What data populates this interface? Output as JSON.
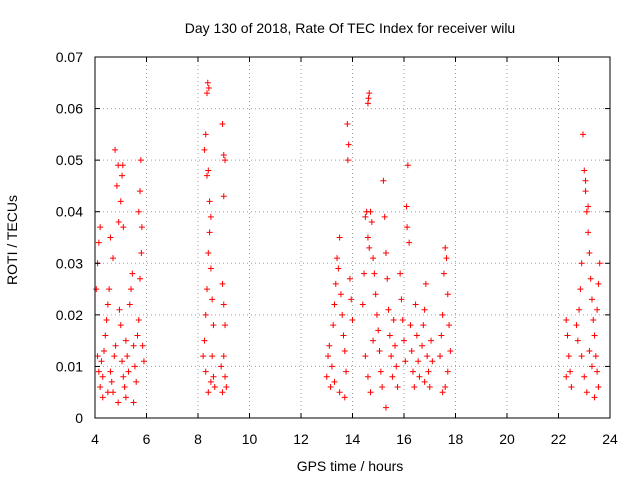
{
  "chart_data": {
    "type": "scatter",
    "title": "Day 130 of 2018, Rate Of TEC Index for receiver wilu",
    "xlabel": "GPS time / hours",
    "ylabel": "ROTI / TECUs",
    "xlim": [
      4,
      24
    ],
    "ylim": [
      0,
      0.07
    ],
    "xticks": [
      4,
      6,
      8,
      10,
      12,
      14,
      16,
      18,
      20,
      22,
      24
    ],
    "xtick_labels": [
      "4",
      "6",
      "8",
      "10",
      "12",
      "14",
      "16",
      "18",
      "20",
      "22",
      "24"
    ],
    "yticks": [
      0,
      0.01,
      0.02,
      0.03,
      0.04,
      0.05,
      0.06,
      0.07
    ],
    "ytick_labels": [
      "0",
      "0.01",
      "0.02",
      "0.03",
      "0.04",
      "0.05",
      "0.06",
      "0.07"
    ],
    "grid": true,
    "marker": "+",
    "color": "#ff0000",
    "series": [
      {
        "name": "ROTI",
        "points": [
          [
            4.05,
            0.025
          ],
          [
            4.1,
            0.03
          ],
          [
            4.15,
            0.034
          ],
          [
            4.2,
            0.037
          ],
          [
            4.1,
            0.012
          ],
          [
            4.15,
            0.009
          ],
          [
            4.2,
            0.006
          ],
          [
            4.25,
            0.011
          ],
          [
            4.3,
            0.008
          ],
          [
            4.35,
            0.013
          ],
          [
            4.4,
            0.016
          ],
          [
            4.45,
            0.019
          ],
          [
            4.5,
            0.022
          ],
          [
            4.55,
            0.025
          ],
          [
            4.6,
            0.009
          ],
          [
            4.65,
            0.007
          ],
          [
            4.7,
            0.005
          ],
          [
            4.75,
            0.012
          ],
          [
            4.8,
            0.014
          ],
          [
            4.85,
            0.045
          ],
          [
            4.9,
            0.049
          ],
          [
            4.78,
            0.052
          ],
          [
            4.92,
            0.038
          ],
          [
            4.7,
            0.031
          ],
          [
            4.6,
            0.035
          ],
          [
            4.95,
            0.021
          ],
          [
            5.0,
            0.018
          ],
          [
            5.05,
            0.011
          ],
          [
            5.1,
            0.008
          ],
          [
            5.15,
            0.006
          ],
          [
            5.0,
            0.042
          ],
          [
            5.05,
            0.047
          ],
          [
            5.08,
            0.049
          ],
          [
            5.1,
            0.037
          ],
          [
            5.2,
            0.015
          ],
          [
            5.25,
            0.012
          ],
          [
            5.3,
            0.009
          ],
          [
            5.35,
            0.022
          ],
          [
            5.4,
            0.025
          ],
          [
            5.45,
            0.028
          ],
          [
            5.5,
            0.014
          ],
          [
            5.55,
            0.01
          ],
          [
            5.6,
            0.007
          ],
          [
            5.65,
            0.016
          ],
          [
            5.7,
            0.019
          ],
          [
            5.75,
            0.027
          ],
          [
            5.8,
            0.032
          ],
          [
            5.7,
            0.04
          ],
          [
            5.75,
            0.044
          ],
          [
            5.78,
            0.05
          ],
          [
            5.82,
            0.037
          ],
          [
            5.85,
            0.014
          ],
          [
            5.9,
            0.011
          ],
          [
            4.3,
            0.004
          ],
          [
            4.5,
            0.005
          ],
          [
            4.9,
            0.003
          ],
          [
            5.2,
            0.004
          ],
          [
            5.5,
            0.003
          ],
          [
            8.2,
            0.012
          ],
          [
            8.25,
            0.015
          ],
          [
            8.3,
            0.02
          ],
          [
            8.35,
            0.025
          ],
          [
            8.4,
            0.032
          ],
          [
            8.3,
            0.055
          ],
          [
            8.35,
            0.063
          ],
          [
            8.38,
            0.065
          ],
          [
            8.42,
            0.064
          ],
          [
            8.4,
            0.048
          ],
          [
            8.45,
            0.042
          ],
          [
            8.5,
            0.039
          ],
          [
            8.45,
            0.036
          ],
          [
            8.5,
            0.029
          ],
          [
            8.55,
            0.023
          ],
          [
            8.6,
            0.018
          ],
          [
            8.55,
            0.012
          ],
          [
            8.6,
            0.008
          ],
          [
            8.65,
            0.006
          ],
          [
            8.3,
            0.009
          ],
          [
            8.4,
            0.005
          ],
          [
            8.5,
            0.007
          ],
          [
            8.25,
            0.052
          ],
          [
            8.35,
            0.047
          ],
          [
            8.95,
            0.057
          ],
          [
            9.0,
            0.051
          ],
          [
            9.05,
            0.05
          ],
          [
            9.0,
            0.043
          ],
          [
            8.95,
            0.026
          ],
          [
            9.0,
            0.022
          ],
          [
            9.05,
            0.018
          ],
          [
            9.0,
            0.012
          ],
          [
            9.05,
            0.008
          ],
          [
            8.95,
            0.005
          ],
          [
            8.9,
            0.01
          ],
          [
            9.1,
            0.006
          ],
          [
            13.0,
            0.008
          ],
          [
            13.05,
            0.012
          ],
          [
            13.1,
            0.014
          ],
          [
            13.15,
            0.006
          ],
          [
            13.2,
            0.01
          ],
          [
            13.25,
            0.018
          ],
          [
            13.3,
            0.022
          ],
          [
            13.35,
            0.026
          ],
          [
            13.4,
            0.031
          ],
          [
            13.45,
            0.029
          ],
          [
            13.5,
            0.035
          ],
          [
            13.55,
            0.024
          ],
          [
            13.6,
            0.02
          ],
          [
            13.65,
            0.016
          ],
          [
            13.7,
            0.013
          ],
          [
            13.75,
            0.009
          ],
          [
            13.8,
            0.057
          ],
          [
            13.85,
            0.053
          ],
          [
            13.82,
            0.05
          ],
          [
            13.9,
            0.027
          ],
          [
            13.95,
            0.023
          ],
          [
            14.0,
            0.019
          ],
          [
            13.3,
            0.007
          ],
          [
            13.5,
            0.005
          ],
          [
            13.7,
            0.004
          ],
          [
            14.4,
            0.022
          ],
          [
            14.45,
            0.028
          ],
          [
            14.5,
            0.039
          ],
          [
            14.55,
            0.04
          ],
          [
            14.6,
            0.035
          ],
          [
            14.65,
            0.033
          ],
          [
            14.6,
            0.061
          ],
          [
            14.65,
            0.063
          ],
          [
            14.62,
            0.062
          ],
          [
            14.7,
            0.04
          ],
          [
            14.75,
            0.038
          ],
          [
            14.8,
            0.031
          ],
          [
            14.85,
            0.028
          ],
          [
            14.9,
            0.024
          ],
          [
            14.95,
            0.02
          ],
          [
            15.0,
            0.017
          ],
          [
            15.05,
            0.013
          ],
          [
            15.1,
            0.009
          ],
          [
            15.15,
            0.006
          ],
          [
            14.5,
            0.012
          ],
          [
            14.6,
            0.008
          ],
          [
            14.7,
            0.005
          ],
          [
            14.8,
            0.015
          ],
          [
            15.2,
            0.046
          ],
          [
            15.25,
            0.039
          ],
          [
            15.3,
            0.032
          ],
          [
            15.35,
            0.027
          ],
          [
            15.4,
            0.021
          ],
          [
            15.45,
            0.016
          ],
          [
            15.5,
            0.012
          ],
          [
            15.55,
            0.008
          ],
          [
            15.3,
            0.002
          ],
          [
            15.6,
            0.019
          ],
          [
            15.65,
            0.014
          ],
          [
            15.7,
            0.01
          ],
          [
            15.75,
            0.006
          ],
          [
            15.85,
            0.028
          ],
          [
            15.9,
            0.023
          ],
          [
            15.95,
            0.019
          ],
          [
            16.0,
            0.015
          ],
          [
            16.05,
            0.011
          ],
          [
            16.1,
            0.041
          ],
          [
            16.15,
            0.049
          ],
          [
            16.12,
            0.037
          ],
          [
            16.2,
            0.034
          ],
          [
            16.25,
            0.018
          ],
          [
            16.3,
            0.013
          ],
          [
            16.35,
            0.009
          ],
          [
            16.4,
            0.006
          ],
          [
            16.45,
            0.022
          ],
          [
            16.5,
            0.016
          ],
          [
            16.55,
            0.011
          ],
          [
            16.6,
            0.008
          ],
          [
            16.7,
            0.014
          ],
          [
            16.75,
            0.018
          ],
          [
            16.8,
            0.021
          ],
          [
            16.85,
            0.026
          ],
          [
            16.9,
            0.012
          ],
          [
            16.95,
            0.009
          ],
          [
            17.0,
            0.006
          ],
          [
            17.05,
            0.015
          ],
          [
            17.1,
            0.011
          ],
          [
            16.8,
            0.007
          ],
          [
            17.4,
            0.012
          ],
          [
            17.45,
            0.016
          ],
          [
            17.5,
            0.02
          ],
          [
            17.55,
            0.028
          ],
          [
            17.6,
            0.033
          ],
          [
            17.65,
            0.031
          ],
          [
            17.7,
            0.024
          ],
          [
            17.75,
            0.018
          ],
          [
            17.8,
            0.013
          ],
          [
            17.7,
            0.009
          ],
          [
            17.6,
            0.006
          ],
          [
            17.5,
            0.005
          ],
          [
            22.3,
            0.019
          ],
          [
            22.35,
            0.016
          ],
          [
            22.4,
            0.012
          ],
          [
            22.45,
            0.009
          ],
          [
            22.5,
            0.006
          ],
          [
            22.3,
            0.008
          ],
          [
            22.7,
            0.018
          ],
          [
            22.75,
            0.015
          ],
          [
            22.8,
            0.021
          ],
          [
            22.85,
            0.025
          ],
          [
            22.9,
            0.03
          ],
          [
            22.95,
            0.055
          ],
          [
            23.0,
            0.048
          ],
          [
            23.05,
            0.044
          ],
          [
            23.1,
            0.04
          ],
          [
            23.15,
            0.036
          ],
          [
            23.2,
            0.032
          ],
          [
            23.25,
            0.027
          ],
          [
            23.3,
            0.023
          ],
          [
            23.35,
            0.019
          ],
          [
            23.4,
            0.016
          ],
          [
            23.45,
            0.012
          ],
          [
            23.5,
            0.009
          ],
          [
            23.55,
            0.006
          ],
          [
            22.9,
            0.012
          ],
          [
            23.0,
            0.008
          ],
          [
            23.1,
            0.005
          ],
          [
            23.2,
            0.013
          ],
          [
            23.3,
            0.01
          ],
          [
            23.4,
            0.004
          ],
          [
            23.5,
            0.021
          ],
          [
            23.55,
            0.026
          ],
          [
            23.6,
            0.03
          ],
          [
            23.05,
            0.046
          ],
          [
            23.15,
            0.041
          ]
        ]
      }
    ]
  }
}
